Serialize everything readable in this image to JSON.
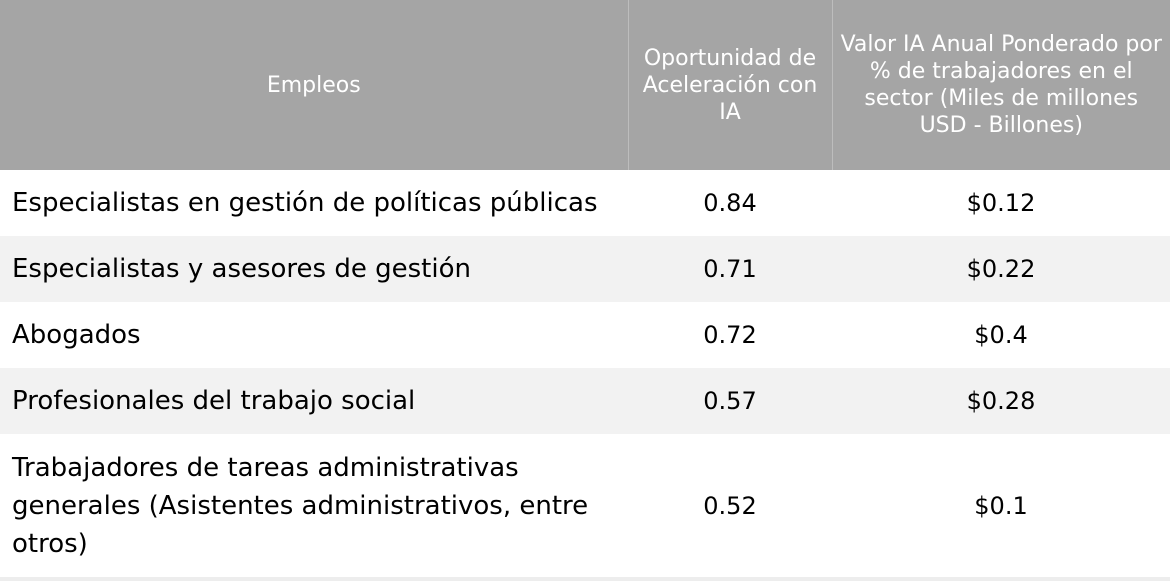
{
  "table": {
    "headers": [
      "Empleos",
      "Oportunidad de Aceleración con IA",
      "Valor IA Anual Ponderado por % de trabajadores en el sector (Miles de millones USD - Billones)"
    ],
    "rows": [
      {
        "job": "Especialistas en gestión de políticas públicas",
        "opportunity": "0.84",
        "value": "$0.12"
      },
      {
        "job": "Especialistas y asesores de gestión",
        "opportunity": "0.71",
        "value": "$0.22"
      },
      {
        "job": "Abogados",
        "opportunity": "0.72",
        "value": "$0.4"
      },
      {
        "job": "Profesionales del trabajo social",
        "opportunity": "0.57",
        "value": "$0.28"
      },
      {
        "job": "Trabajadores de tareas administrativas generales (Asistentes administrativos, entre otros)",
        "opportunity": "0.52",
        "value": "$0.1"
      }
    ]
  },
  "colors": {
    "header_bg": "#a5a5a5",
    "header_text": "#ffffff",
    "row_alt_bg": "#f2f2f2"
  }
}
